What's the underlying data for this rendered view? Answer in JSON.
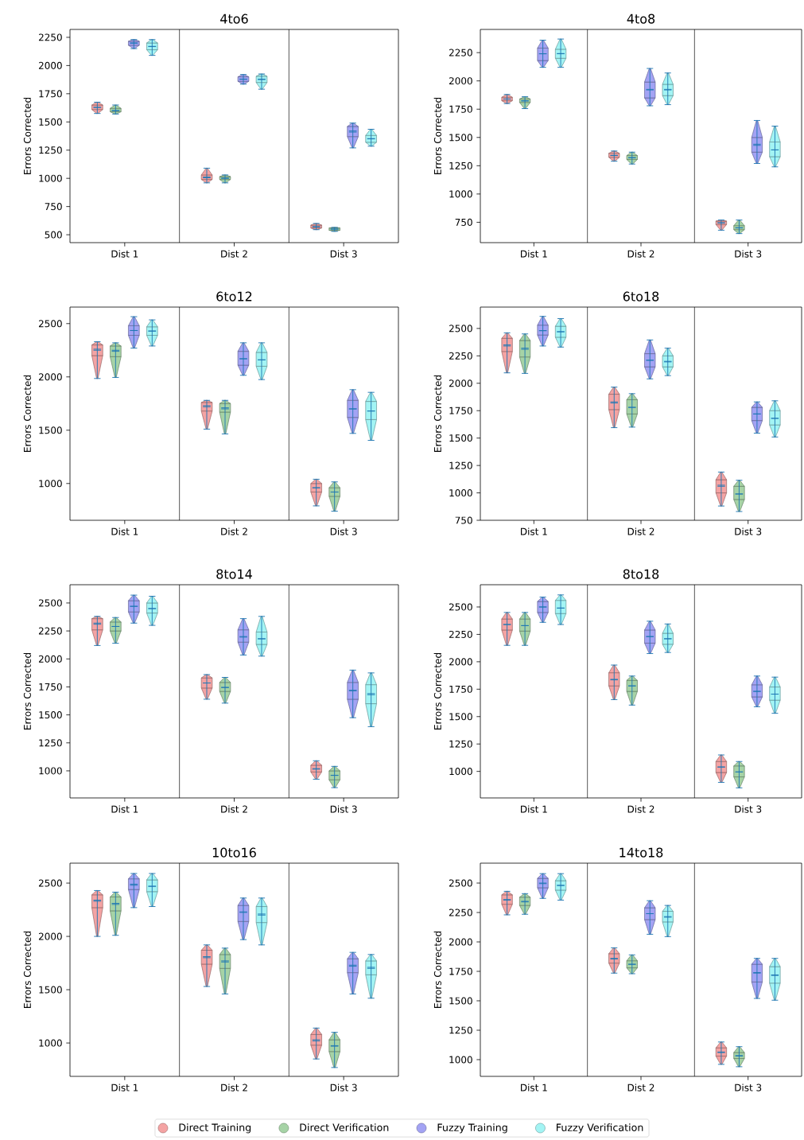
{
  "chart_data": [
    {
      "type": "box",
      "title": "4to6",
      "ylabel": "Errors Corrected",
      "categories": [
        "Dist 1",
        "Dist 2",
        "Dist 3"
      ],
      "ylim": [
        430,
        2320
      ],
      "yticks": [
        500,
        750,
        1000,
        1250,
        1500,
        1750,
        2000,
        2250
      ],
      "series": [
        {
          "color": "#f4a3a3",
          "boxes": [
            {
              "low": 1575,
              "q1": 1610,
              "median": 1630,
              "q3": 1650,
              "high": 1675,
              "mean": 1628
            },
            {
              "low": 960,
              "q1": 990,
              "median": 1005,
              "q3": 1030,
              "high": 1090,
              "mean": 1012
            },
            {
              "low": 545,
              "q1": 560,
              "median": 570,
              "q3": 585,
              "high": 600,
              "mean": 572
            }
          ]
        },
        {
          "color": "#a6d3a6",
          "boxes": [
            {
              "low": 1570,
              "q1": 1590,
              "median": 1600,
              "q3": 1620,
              "high": 1650,
              "mean": 1602
            },
            {
              "low": 960,
              "q1": 990,
              "median": 1000,
              "q3": 1015,
              "high": 1030,
              "mean": 1002
            },
            {
              "low": 530,
              "q1": 540,
              "median": 550,
              "q3": 560,
              "high": 565,
              "mean": 550
            }
          ]
        },
        {
          "color": "#a3a3f4",
          "boxes": [
            {
              "low": 2150,
              "q1": 2180,
              "median": 2200,
              "q3": 2215,
              "high": 2230,
              "mean": 2198
            },
            {
              "low": 1835,
              "q1": 1860,
              "median": 1880,
              "q3": 1900,
              "high": 1920,
              "mean": 1878
            },
            {
              "low": 1270,
              "q1": 1370,
              "median": 1420,
              "q3": 1460,
              "high": 1490,
              "mean": 1410
            }
          ]
        },
        {
          "color": "#a3f4f4",
          "boxes": [
            {
              "low": 2090,
              "q1": 2140,
              "median": 2170,
              "q3": 2200,
              "high": 2230,
              "mean": 2168
            },
            {
              "low": 1790,
              "q1": 1850,
              "median": 1880,
              "q3": 1905,
              "high": 1925,
              "mean": 1875
            },
            {
              "low": 1285,
              "q1": 1320,
              "median": 1350,
              "q3": 1380,
              "high": 1435,
              "mean": 1352
            }
          ]
        }
      ]
    },
    {
      "type": "box",
      "title": "4to8",
      "ylabel": "Errors Corrected",
      "categories": [
        "Dist 1",
        "Dist 2",
        "Dist 3"
      ],
      "ylim": [
        570,
        2455
      ],
      "yticks": [
        750,
        1000,
        1250,
        1500,
        1750,
        2000,
        2250
      ],
      "series": [
        {
          "color": "#f4a3a3",
          "boxes": [
            {
              "low": 1800,
              "q1": 1825,
              "median": 1840,
              "q3": 1855,
              "high": 1880,
              "mean": 1840
            },
            {
              "low": 1290,
              "q1": 1325,
              "median": 1340,
              "q3": 1360,
              "high": 1380,
              "mean": 1342
            },
            {
              "low": 680,
              "q1": 730,
              "median": 745,
              "q3": 760,
              "high": 770,
              "mean": 745
            }
          ]
        },
        {
          "color": "#a6d3a6",
          "boxes": [
            {
              "low": 1755,
              "q1": 1810,
              "median": 1825,
              "q3": 1840,
              "high": 1860,
              "mean": 1822
            },
            {
              "low": 1265,
              "q1": 1305,
              "median": 1320,
              "q3": 1340,
              "high": 1370,
              "mean": 1322
            },
            {
              "low": 650,
              "q1": 685,
              "median": 700,
              "q3": 720,
              "high": 770,
              "mean": 702
            }
          ]
        },
        {
          "color": "#a3a3f4",
          "boxes": [
            {
              "low": 2120,
              "q1": 2180,
              "median": 2240,
              "q3": 2290,
              "high": 2360,
              "mean": 2240
            },
            {
              "low": 1780,
              "q1": 1850,
              "median": 1920,
              "q3": 1990,
              "high": 2110,
              "mean": 1925
            },
            {
              "low": 1270,
              "q1": 1370,
              "median": 1430,
              "q3": 1500,
              "high": 1650,
              "mean": 1440
            }
          ]
        },
        {
          "color": "#a3f4f4",
          "boxes": [
            {
              "low": 2120,
              "q1": 2200,
              "median": 2240,
              "q3": 2280,
              "high": 2370,
              "mean": 2242
            },
            {
              "low": 1790,
              "q1": 1870,
              "median": 1920,
              "q3": 1970,
              "high": 2070,
              "mean": 1925
            },
            {
              "low": 1240,
              "q1": 1330,
              "median": 1390,
              "q3": 1460,
              "high": 1600,
              "mean": 1390
            }
          ]
        }
      ]
    },
    {
      "type": "box",
      "title": "6to12",
      "ylabel": "Errors Corrected",
      "categories": [
        "Dist 1",
        "Dist 2",
        "Dist 3"
      ],
      "ylim": [
        655,
        2655
      ],
      "yticks": [
        1000,
        1500,
        2000,
        2500
      ],
      "series": [
        {
          "color": "#f4a3a3",
          "boxes": [
            {
              "low": 1985,
              "q1": 2200,
              "median": 2260,
              "q3": 2300,
              "high": 2330,
              "mean": 2250
            },
            {
              "low": 1510,
              "q1": 1680,
              "median": 1730,
              "q3": 1760,
              "high": 1780,
              "mean": 1720
            },
            {
              "low": 790,
              "q1": 920,
              "median": 960,
              "q3": 1000,
              "high": 1040,
              "mean": 960
            }
          ]
        },
        {
          "color": "#a6d3a6",
          "boxes": [
            {
              "low": 1995,
              "q1": 2190,
              "median": 2250,
              "q3": 2290,
              "high": 2320,
              "mean": 2240
            },
            {
              "low": 1465,
              "q1": 1670,
              "median": 1710,
              "q3": 1750,
              "high": 1780,
              "mean": 1700
            },
            {
              "low": 740,
              "q1": 880,
              "median": 920,
              "q3": 960,
              "high": 1015,
              "mean": 920
            }
          ]
        },
        {
          "color": "#a3a3f4",
          "boxes": [
            {
              "low": 2270,
              "q1": 2390,
              "median": 2435,
              "q3": 2480,
              "high": 2565,
              "mean": 2435
            },
            {
              "low": 2015,
              "q1": 2110,
              "median": 2170,
              "q3": 2240,
              "high": 2320,
              "mean": 2170
            },
            {
              "low": 1470,
              "q1": 1620,
              "median": 1700,
              "q3": 1780,
              "high": 1880,
              "mean": 1700
            }
          ]
        },
        {
          "color": "#a3f4f4",
          "boxes": [
            {
              "low": 2290,
              "q1": 2390,
              "median": 2430,
              "q3": 2470,
              "high": 2535,
              "mean": 2430
            },
            {
              "low": 1975,
              "q1": 2100,
              "median": 2160,
              "q3": 2230,
              "high": 2320,
              "mean": 2160
            },
            {
              "low": 1405,
              "q1": 1600,
              "median": 1680,
              "q3": 1770,
              "high": 1855,
              "mean": 1680
            }
          ]
        }
      ]
    },
    {
      "type": "box",
      "title": "6to18",
      "ylabel": "Errors Corrected",
      "categories": [
        "Dist 1",
        "Dist 2",
        "Dist 3"
      ],
      "ylim": [
        750,
        2695
      ],
      "yticks": [
        750,
        1000,
        1250,
        1500,
        1750,
        2000,
        2250,
        2500
      ],
      "series": [
        {
          "color": "#f4a3a3",
          "boxes": [
            {
              "low": 2095,
              "q1": 2290,
              "median": 2350,
              "q3": 2410,
              "high": 2460,
              "mean": 2340
            },
            {
              "low": 1595,
              "q1": 1760,
              "median": 1830,
              "q3": 1900,
              "high": 1965,
              "mean": 1820
            },
            {
              "low": 880,
              "q1": 1000,
              "median": 1060,
              "q3": 1120,
              "high": 1190,
              "mean": 1070
            }
          ]
        },
        {
          "color": "#a6d3a6",
          "boxes": [
            {
              "low": 2090,
              "q1": 2240,
              "median": 2320,
              "q3": 2390,
              "high": 2450,
              "mean": 2310
            },
            {
              "low": 1600,
              "q1": 1720,
              "median": 1780,
              "q3": 1850,
              "high": 1905,
              "mean": 1780
            },
            {
              "low": 830,
              "q1": 940,
              "median": 990,
              "q3": 1060,
              "high": 1115,
              "mean": 990
            }
          ]
        },
        {
          "color": "#a3a3f4",
          "boxes": [
            {
              "low": 2340,
              "q1": 2440,
              "median": 2480,
              "q3": 2530,
              "high": 2610,
              "mean": 2480
            },
            {
              "low": 2040,
              "q1": 2150,
              "median": 2210,
              "q3": 2270,
              "high": 2395,
              "mean": 2210
            },
            {
              "low": 1545,
              "q1": 1660,
              "median": 1720,
              "q3": 1780,
              "high": 1830,
              "mean": 1720
            }
          ]
        },
        {
          "color": "#a3f4f4",
          "boxes": [
            {
              "low": 2330,
              "q1": 2420,
              "median": 2470,
              "q3": 2520,
              "high": 2590,
              "mean": 2470
            },
            {
              "low": 2070,
              "q1": 2150,
              "median": 2200,
              "q3": 2250,
              "high": 2320,
              "mean": 2195
            },
            {
              "low": 1510,
              "q1": 1620,
              "median": 1680,
              "q3": 1750,
              "high": 1840,
              "mean": 1680
            }
          ]
        }
      ]
    },
    {
      "type": "box",
      "title": "8to14",
      "ylabel": "Errors Corrected",
      "categories": [
        "Dist 1",
        "Dist 2",
        "Dist 3"
      ],
      "ylim": [
        758,
        2663
      ],
      "yticks": [
        1000,
        1250,
        1500,
        1750,
        2000,
        2250,
        2500
      ],
      "series": [
        {
          "color": "#f4a3a3",
          "boxes": [
            {
              "low": 2120,
              "q1": 2260,
              "median": 2320,
              "q3": 2360,
              "high": 2380,
              "mean": 2310
            },
            {
              "low": 1640,
              "q1": 1740,
              "median": 1785,
              "q3": 1830,
              "high": 1860,
              "mean": 1785
            },
            {
              "low": 925,
              "q1": 990,
              "median": 1020,
              "q3": 1050,
              "high": 1090,
              "mean": 1015
            }
          ]
        },
        {
          "color": "#a6d3a6",
          "boxes": [
            {
              "low": 2140,
              "q1": 2250,
              "median": 2290,
              "q3": 2330,
              "high": 2370,
              "mean": 2290
            },
            {
              "low": 1605,
              "q1": 1710,
              "median": 1745,
              "q3": 1790,
              "high": 1835,
              "mean": 1745
            },
            {
              "low": 850,
              "q1": 920,
              "median": 960,
              "q3": 1000,
              "high": 1040,
              "mean": 960
            }
          ]
        },
        {
          "color": "#a3a3f4",
          "boxes": [
            {
              "low": 2320,
              "q1": 2420,
              "median": 2470,
              "q3": 2520,
              "high": 2570,
              "mean": 2470
            },
            {
              "low": 2035,
              "q1": 2150,
              "median": 2200,
              "q3": 2260,
              "high": 2360,
              "mean": 2195
            },
            {
              "low": 1475,
              "q1": 1640,
              "median": 1720,
              "q3": 1790,
              "high": 1900,
              "mean": 1715
            }
          ]
        },
        {
          "color": "#a3f4f4",
          "boxes": [
            {
              "low": 2300,
              "q1": 2410,
              "median": 2450,
              "q3": 2500,
              "high": 2560,
              "mean": 2450
            },
            {
              "low": 2025,
              "q1": 2130,
              "median": 2180,
              "q3": 2240,
              "high": 2380,
              "mean": 2180
            },
            {
              "low": 1395,
              "q1": 1600,
              "median": 1690,
              "q3": 1770,
              "high": 1875,
              "mean": 1680
            }
          ]
        }
      ]
    },
    {
      "type": "box",
      "title": "8to18",
      "ylabel": "Errors Corrected",
      "categories": [
        "Dist 1",
        "Dist 2",
        "Dist 3"
      ],
      "ylim": [
        758,
        2703
      ],
      "yticks": [
        1000,
        1250,
        1500,
        1750,
        2000,
        2250,
        2500
      ],
      "series": [
        {
          "color": "#f4a3a3",
          "boxes": [
            {
              "low": 2150,
              "q1": 2290,
              "median": 2340,
              "q3": 2390,
              "high": 2450,
              "mean": 2340
            },
            {
              "low": 1655,
              "q1": 1780,
              "median": 1840,
              "q3": 1900,
              "high": 1970,
              "mean": 1835
            },
            {
              "low": 900,
              "q1": 990,
              "median": 1040,
              "q3": 1090,
              "high": 1150,
              "mean": 1040
            }
          ]
        },
        {
          "color": "#a6d3a6",
          "boxes": [
            {
              "low": 2150,
              "q1": 2280,
              "median": 2330,
              "q3": 2390,
              "high": 2450,
              "mean": 2330
            },
            {
              "low": 1605,
              "q1": 1730,
              "median": 1780,
              "q3": 1830,
              "high": 1870,
              "mean": 1780
            },
            {
              "low": 850,
              "q1": 950,
              "median": 995,
              "q3": 1050,
              "high": 1090,
              "mean": 995
            }
          ]
        },
        {
          "color": "#a3a3f4",
          "boxes": [
            {
              "low": 2360,
              "q1": 2450,
              "median": 2500,
              "q3": 2550,
              "high": 2590,
              "mean": 2500
            },
            {
              "low": 2075,
              "q1": 2170,
              "median": 2230,
              "q3": 2290,
              "high": 2370,
              "mean": 2230
            },
            {
              "low": 1590,
              "q1": 1680,
              "median": 1730,
              "q3": 1790,
              "high": 1870,
              "mean": 1730
            }
          ]
        },
        {
          "color": "#a3f4f4",
          "boxes": [
            {
              "low": 2340,
              "q1": 2440,
              "median": 2490,
              "q3": 2560,
              "high": 2610,
              "mean": 2490
            },
            {
              "low": 2085,
              "q1": 2160,
              "median": 2210,
              "q3": 2260,
              "high": 2345,
              "mean": 2210
            },
            {
              "low": 1530,
              "q1": 1650,
              "median": 1705,
              "q3": 1770,
              "high": 1860,
              "mean": 1705
            }
          ]
        }
      ]
    },
    {
      "type": "box",
      "title": "10to16",
      "ylabel": "Errors Corrected",
      "categories": [
        "Dist 1",
        "Dist 2",
        "Dist 3"
      ],
      "ylim": [
        687,
        2687
      ],
      "yticks": [
        1000,
        1500,
        2000,
        2500
      ],
      "series": [
        {
          "color": "#f4a3a3",
          "boxes": [
            {
              "low": 2000,
              "q1": 2270,
              "median": 2340,
              "q3": 2390,
              "high": 2430,
              "mean": 2330
            },
            {
              "low": 1530,
              "q1": 1740,
              "median": 1810,
              "q3": 1870,
              "high": 1920,
              "mean": 1800
            },
            {
              "low": 850,
              "q1": 980,
              "median": 1030,
              "q3": 1080,
              "high": 1140,
              "mean": 1020
            }
          ]
        },
        {
          "color": "#a6d3a6",
          "boxes": [
            {
              "low": 2010,
              "q1": 2240,
              "median": 2310,
              "q3": 2370,
              "high": 2415,
              "mean": 2300
            },
            {
              "low": 1460,
              "q1": 1700,
              "median": 1770,
              "q3": 1830,
              "high": 1890,
              "mean": 1760
            },
            {
              "low": 770,
              "q1": 920,
              "median": 970,
              "q3": 1030,
              "high": 1100,
              "mean": 975
            }
          ]
        },
        {
          "color": "#a3a3f4",
          "boxes": [
            {
              "low": 2270,
              "q1": 2440,
              "median": 2490,
              "q3": 2540,
              "high": 2590,
              "mean": 2480
            },
            {
              "low": 1970,
              "q1": 2140,
              "median": 2230,
              "q3": 2290,
              "high": 2360,
              "mean": 2225
            },
            {
              "low": 1460,
              "q1": 1660,
              "median": 1730,
              "q3": 1790,
              "high": 1850,
              "mean": 1720
            }
          ]
        },
        {
          "color": "#a3f4f4",
          "boxes": [
            {
              "low": 2280,
              "q1": 2420,
              "median": 2470,
              "q3": 2530,
              "high": 2590,
              "mean": 2470
            },
            {
              "low": 1920,
              "q1": 2130,
              "median": 2210,
              "q3": 2280,
              "high": 2360,
              "mean": 2200
            },
            {
              "low": 1420,
              "q1": 1640,
              "median": 1710,
              "q3": 1770,
              "high": 1830,
              "mean": 1700
            }
          ]
        }
      ]
    },
    {
      "type": "box",
      "title": "14to18",
      "ylabel": "Errors Corrected",
      "categories": [
        "Dist 1",
        "Dist 2",
        "Dist 3"
      ],
      "ylim": [
        858,
        2669
      ],
      "yticks": [
        1000,
        1250,
        1500,
        1750,
        2000,
        2250,
        2500
      ],
      "legend": "bottom",
      "series": [
        {
          "name": "Direct Training",
          "color": "#f4a3a3",
          "boxes": [
            {
              "low": 2230,
              "q1": 2320,
              "median": 2360,
              "q3": 2400,
              "high": 2430,
              "mean": 2355
            },
            {
              "low": 1735,
              "q1": 1820,
              "median": 1860,
              "q3": 1900,
              "high": 1950,
              "mean": 1855
            },
            {
              "low": 960,
              "q1": 1030,
              "median": 1065,
              "q3": 1100,
              "high": 1150,
              "mean": 1060
            }
          ]
        },
        {
          "name": "Direct Verification",
          "color": "#a6d3a6",
          "boxes": [
            {
              "low": 2235,
              "q1": 2310,
              "median": 2345,
              "q3": 2380,
              "high": 2410,
              "mean": 2340
            },
            {
              "low": 1730,
              "q1": 1780,
              "median": 1810,
              "q3": 1840,
              "high": 1890,
              "mean": 1810
            },
            {
              "low": 940,
              "q1": 1010,
              "median": 1035,
              "q3": 1060,
              "high": 1110,
              "mean": 1030
            }
          ]
        },
        {
          "name": "Fuzzy Training",
          "color": "#a3a3f4",
          "boxes": [
            {
              "low": 2370,
              "q1": 2460,
              "median": 2500,
              "q3": 2540,
              "high": 2580,
              "mean": 2495
            },
            {
              "low": 2065,
              "q1": 2190,
              "median": 2240,
              "q3": 2290,
              "high": 2350,
              "mean": 2240
            },
            {
              "low": 1520,
              "q1": 1660,
              "median": 1740,
              "q3": 1810,
              "high": 1860,
              "mean": 1735
            }
          ]
        },
        {
          "name": "Fuzzy Verification",
          "color": "#a3f4f4",
          "boxes": [
            {
              "low": 2355,
              "q1": 2440,
              "median": 2480,
              "q3": 2520,
              "high": 2580,
              "mean": 2480
            },
            {
              "low": 2045,
              "q1": 2170,
              "median": 2215,
              "q3": 2260,
              "high": 2310,
              "mean": 2210
            },
            {
              "low": 1505,
              "q1": 1650,
              "median": 1720,
              "q3": 1790,
              "high": 1860,
              "mean": 1715
            }
          ]
        }
      ]
    }
  ]
}
